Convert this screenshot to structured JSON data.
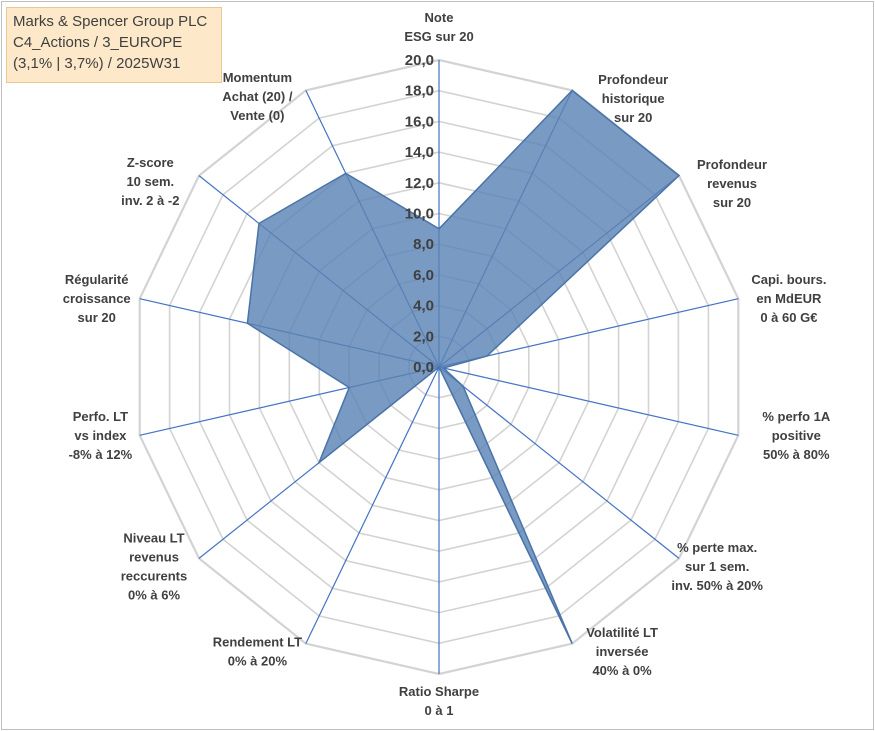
{
  "title_box": {
    "line1": "Marks & Spencer Group PLC",
    "line2": "C4_Actions / 3_EUROPE",
    "line3": "(3,1% | 3,7%) / 2025W31"
  },
  "chart_data": {
    "type": "radar",
    "rmin": 0,
    "rmax": 20,
    "tick_step": 2,
    "tick_labels": [
      "0,0",
      "2,0",
      "4,0",
      "6,0",
      "8,0",
      "10,0",
      "12,0",
      "14,0",
      "16,0",
      "18,0",
      "20,0"
    ],
    "categories": [
      {
        "lines": [
          "Note",
          "ESG sur 20"
        ]
      },
      {
        "lines": [
          "Profondeur",
          "historique",
          "sur 20"
        ]
      },
      {
        "lines": [
          "Profondeur",
          "revenus",
          "sur 20"
        ]
      },
      {
        "lines": [
          "Capi. bours.",
          "en MdEUR",
          "0 à 60 G€"
        ]
      },
      {
        "lines": [
          "% perfo 1A",
          "positive",
          "50% à 80%"
        ]
      },
      {
        "lines": [
          "% perte max.",
          "sur 1 sem.",
          "inv. 50% à 20%"
        ]
      },
      {
        "lines": [
          "Volatilité LT",
          "inversée",
          "40% à 0%"
        ]
      },
      {
        "lines": [
          "Ratio Sharpe",
          "0 à 1"
        ]
      },
      {
        "lines": [
          "Rendement LT",
          "0% à 20%"
        ]
      },
      {
        "lines": [
          "Niveau LT",
          "revenus",
          "reccurents",
          "0% à 6%"
        ]
      },
      {
        "lines": [
          "Perfo. LT",
          "vs index",
          "-8% à 12%"
        ]
      },
      {
        "lines": [
          "Régularité",
          "croissance",
          "sur 20"
        ]
      },
      {
        "lines": [
          "Z-score",
          "10 sem.",
          "inv. 2 à -2"
        ]
      },
      {
        "lines": [
          "Momentum",
          "Achat (20) /",
          "Vente (0)"
        ]
      }
    ],
    "series": [
      {
        "values": [
          9.0,
          20.0,
          20.0,
          3.2,
          0.3,
          2.0,
          20.0,
          0.0,
          0.0,
          10.0,
          6.0,
          12.8,
          15.0,
          14.0
        ]
      }
    ],
    "colors": {
      "fill": "#5b84b5",
      "fill_opacity": 0.82,
      "grid": "#d3d3d3",
      "spoke": "#4472c4",
      "outline": "#4a74a8"
    },
    "grid": true,
    "legend": "none"
  }
}
